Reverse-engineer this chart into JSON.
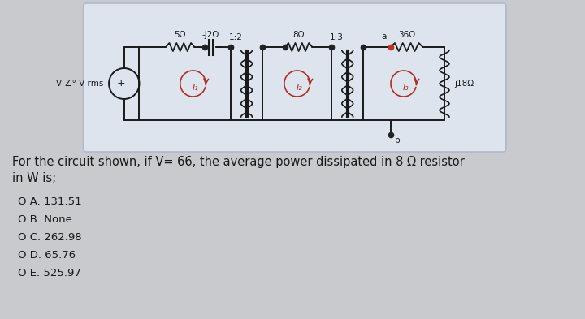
{
  "bg_color": "#c8cace",
  "circuit_bg": "#dde4ee",
  "circuit_border": "#b0b8cc",
  "title_text1": "For the circuit shown, if V= 66, the average power dissipated in 8 Ω resistor",
  "title_text2": "in W is;",
  "options": [
    "O A. 131.51",
    "O B. None",
    "O C. 262.98",
    "O D. 65.76",
    "O E. 525.97"
  ],
  "label_5ohm": "5Ω",
  "label_j2ohm": "-j2Ω",
  "label_ratio1": "1:2",
  "label_8ohm": "8Ω",
  "label_ratio2": "1:3",
  "label_a": "a",
  "label_36ohm": "36Ω",
  "label_j18ohm": "j18Ω",
  "label_source": "V ∠° V rms",
  "label_b": "b",
  "text_color": "#1a1a1a",
  "wire_color": "#1a1a1a",
  "arrow_color": "#b03020",
  "dot_color_red": "#c03020",
  "dot_color_dark": "#222222"
}
